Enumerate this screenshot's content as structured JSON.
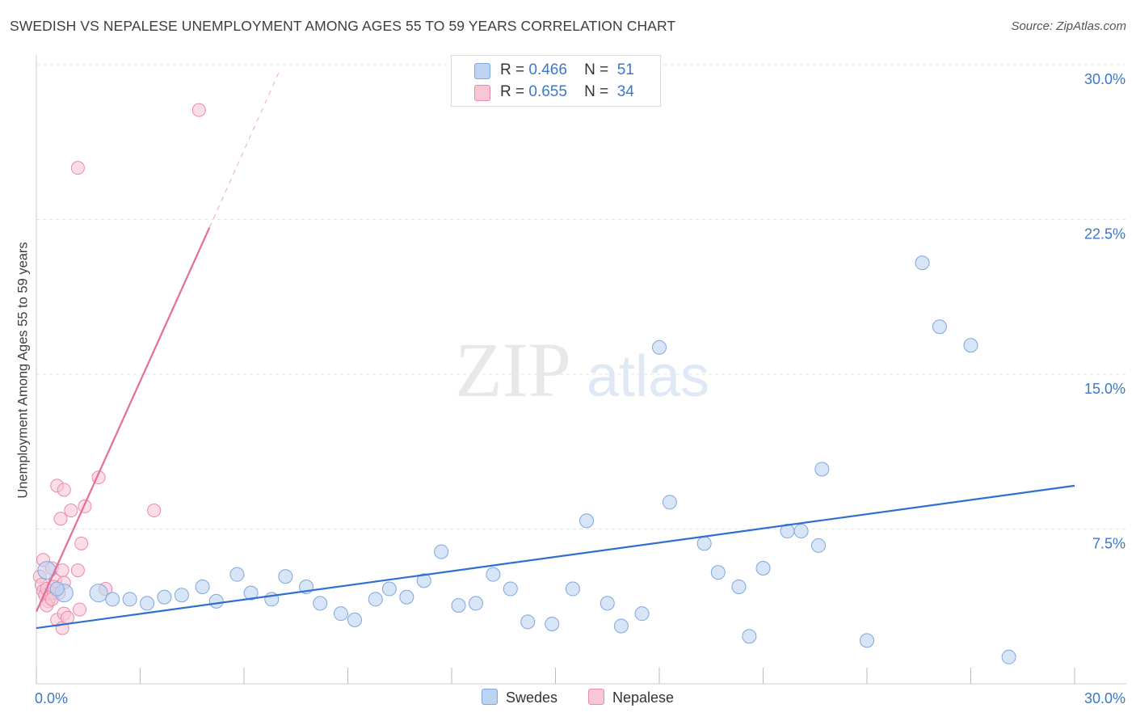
{
  "title": "SWEDISH VS NEPALESE UNEMPLOYMENT AMONG AGES 55 TO 59 YEARS CORRELATION CHART",
  "source": "Source: ZipAtlas.com",
  "watermark": {
    "zip": "ZIP",
    "atlas": "atlas"
  },
  "legend": {
    "r_label": "R =",
    "n_label": "N =",
    "rows": [
      {
        "r": "0.466",
        "n": "51",
        "color": "#a9c8f0"
      },
      {
        "r": "0.655",
        "n": "34",
        "color": "#f6b7c9"
      }
    ]
  },
  "bottom_legend": [
    {
      "label": "Swedes",
      "color": "#a9c8f0"
    },
    {
      "label": "Nepalese",
      "color": "#f6b7c9"
    }
  ],
  "colors": {
    "swedes_fill": "#bcd4f2",
    "swedes_stroke": "#7ea7dc",
    "swedes_line": "#2f6fcf",
    "nepalese_fill": "#f8c6d5",
    "nepalese_stroke": "#e98aa8",
    "nepalese_line": "#e56d98",
    "tick_label": "#3b78c8",
    "grid": "#e3e3e3"
  },
  "chart_data": {
    "type": "scatter",
    "title": "SWEDISH VS NEPALESE UNEMPLOYMENT AMONG AGES 55 TO 59 YEARS CORRELATION CHART",
    "xlabel": "",
    "ylabel": "Unemployment Among Ages 55 to 59 years",
    "xlim": [
      0,
      30
    ],
    "ylim": [
      0,
      30
    ],
    "x_tick_labels": [
      "0.0%",
      "30.0%"
    ],
    "y_ticks": [
      7.5,
      15.0,
      22.5,
      30.0
    ],
    "y_tick_labels": [
      "7.5%",
      "15.0%",
      "22.5%",
      "30.0%"
    ],
    "grid": true,
    "series": [
      {
        "name": "Swedes",
        "R": 0.466,
        "N": 51,
        "trend": {
          "x": [
            0,
            30
          ],
          "y": [
            2.7,
            9.6
          ]
        },
        "points": [
          {
            "x": 0.3,
            "y": 5.5,
            "big": true
          },
          {
            "x": 0.8,
            "y": 4.4,
            "big": true
          },
          {
            "x": 1.8,
            "y": 4.4,
            "big": true
          },
          {
            "x": 2.2,
            "y": 4.1
          },
          {
            "x": 2.7,
            "y": 4.1
          },
          {
            "x": 3.2,
            "y": 3.9
          },
          {
            "x": 3.7,
            "y": 4.2
          },
          {
            "x": 4.2,
            "y": 4.3
          },
          {
            "x": 4.8,
            "y": 4.7
          },
          {
            "x": 5.2,
            "y": 4.0
          },
          {
            "x": 5.8,
            "y": 5.3
          },
          {
            "x": 6.2,
            "y": 4.4
          },
          {
            "x": 6.8,
            "y": 4.1
          },
          {
            "x": 7.2,
            "y": 5.2
          },
          {
            "x": 7.8,
            "y": 4.7
          },
          {
            "x": 8.2,
            "y": 3.9
          },
          {
            "x": 8.8,
            "y": 3.4
          },
          {
            "x": 9.2,
            "y": 3.1
          },
          {
            "x": 9.8,
            "y": 4.1
          },
          {
            "x": 10.2,
            "y": 4.6
          },
          {
            "x": 10.7,
            "y": 4.2
          },
          {
            "x": 11.2,
            "y": 5.0
          },
          {
            "x": 11.7,
            "y": 6.4
          },
          {
            "x": 12.2,
            "y": 3.8
          },
          {
            "x": 12.7,
            "y": 3.9
          },
          {
            "x": 13.2,
            "y": 5.3
          },
          {
            "x": 13.7,
            "y": 4.6
          },
          {
            "x": 14.2,
            "y": 3.0
          },
          {
            "x": 14.9,
            "y": 2.9
          },
          {
            "x": 15.5,
            "y": 4.6
          },
          {
            "x": 15.9,
            "y": 7.9
          },
          {
            "x": 16.5,
            "y": 3.9
          },
          {
            "x": 16.9,
            "y": 2.8
          },
          {
            "x": 17.5,
            "y": 3.4
          },
          {
            "x": 18.0,
            "y": 16.3
          },
          {
            "x": 18.3,
            "y": 8.8
          },
          {
            "x": 19.3,
            "y": 6.8
          },
          {
            "x": 19.7,
            "y": 5.4
          },
          {
            "x": 20.3,
            "y": 4.7
          },
          {
            "x": 20.6,
            "y": 2.3
          },
          {
            "x": 21.0,
            "y": 5.6
          },
          {
            "x": 21.7,
            "y": 7.4
          },
          {
            "x": 22.1,
            "y": 7.4
          },
          {
            "x": 22.6,
            "y": 6.7
          },
          {
            "x": 22.7,
            "y": 10.4
          },
          {
            "x": 24.0,
            "y": 2.1
          },
          {
            "x": 25.6,
            "y": 20.4
          },
          {
            "x": 26.1,
            "y": 17.3
          },
          {
            "x": 27.0,
            "y": 16.4
          },
          {
            "x": 28.1,
            "y": 1.3
          },
          {
            "x": 0.6,
            "y": 4.6
          }
        ]
      },
      {
        "name": "Nepalese",
        "R": 0.655,
        "N": 34,
        "trend": {
          "x": [
            0,
            5.0
          ],
          "y": [
            3.5,
            22.1
          ]
        },
        "trend_dashed": {
          "x": [
            5.0,
            7.0
          ],
          "y": [
            22.1,
            29.6
          ]
        },
        "points": [
          {
            "x": 0.1,
            "y": 5.2
          },
          {
            "x": 0.15,
            "y": 4.8
          },
          {
            "x": 0.2,
            "y": 4.5
          },
          {
            "x": 0.2,
            "y": 6.0
          },
          {
            "x": 0.25,
            "y": 4.3
          },
          {
            "x": 0.3,
            "y": 4.6
          },
          {
            "x": 0.35,
            "y": 4.0
          },
          {
            "x": 0.4,
            "y": 4.2
          },
          {
            "x": 0.45,
            "y": 5.6
          },
          {
            "x": 0.5,
            "y": 4.4
          },
          {
            "x": 0.55,
            "y": 5.0
          },
          {
            "x": 0.6,
            "y": 3.1
          },
          {
            "x": 0.6,
            "y": 9.6
          },
          {
            "x": 0.65,
            "y": 4.4
          },
          {
            "x": 0.7,
            "y": 8.0
          },
          {
            "x": 0.75,
            "y": 5.5
          },
          {
            "x": 0.75,
            "y": 2.7
          },
          {
            "x": 0.8,
            "y": 4.9
          },
          {
            "x": 0.8,
            "y": 3.4
          },
          {
            "x": 0.8,
            "y": 9.4
          },
          {
            "x": 0.9,
            "y": 3.2
          },
          {
            "x": 1.0,
            "y": 8.4
          },
          {
            "x": 1.2,
            "y": 5.5
          },
          {
            "x": 1.2,
            "y": 25.0
          },
          {
            "x": 1.25,
            "y": 3.6
          },
          {
            "x": 1.3,
            "y": 6.8
          },
          {
            "x": 1.4,
            "y": 8.6
          },
          {
            "x": 1.8,
            "y": 10.0
          },
          {
            "x": 2.0,
            "y": 4.6
          },
          {
            "x": 3.4,
            "y": 8.4
          },
          {
            "x": 4.7,
            "y": 27.8
          },
          {
            "x": 0.3,
            "y": 3.8
          },
          {
            "x": 0.45,
            "y": 4.1
          },
          {
            "x": 0.5,
            "y": 4.7
          }
        ]
      }
    ]
  }
}
